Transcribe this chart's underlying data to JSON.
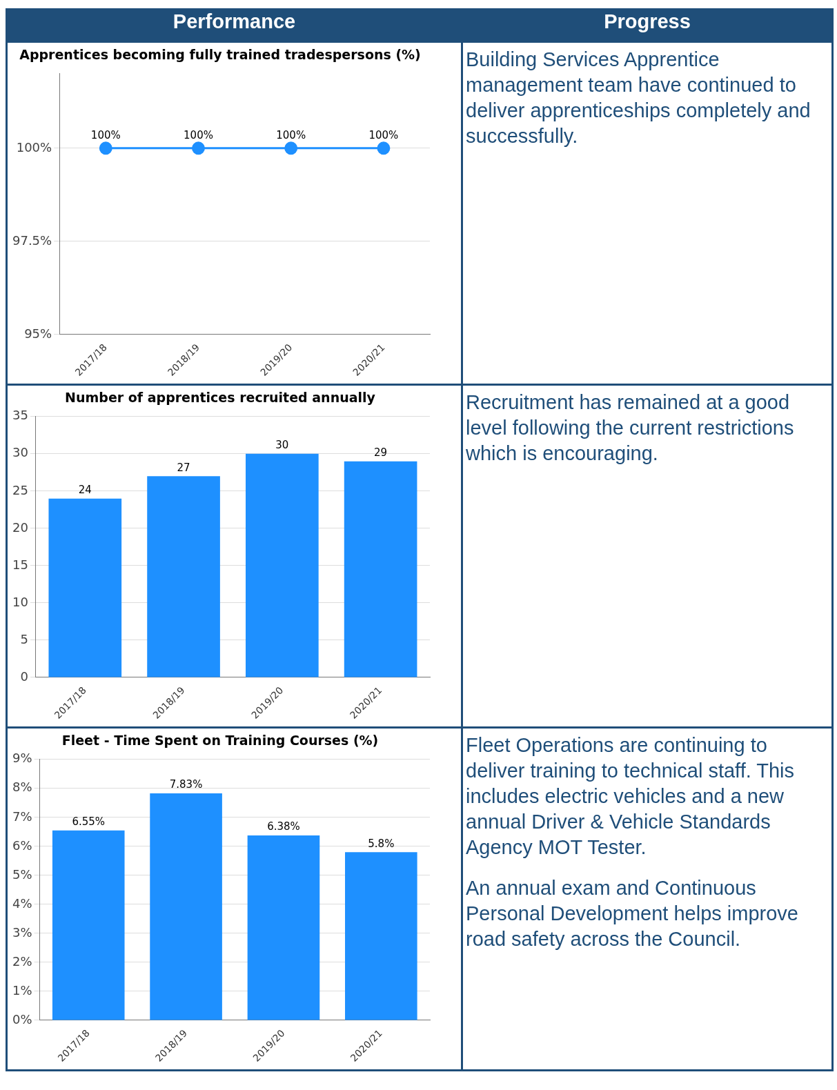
{
  "chart_data": [
    {
      "type": "other",
      "annotations": [
        "Performance",
        "Progress"
      ]
    },
    {
      "type": "line",
      "title": "Apprentices becoming fully trained tradespersons (%)",
      "categories": [
        "2017/18",
        "2018/19",
        "2019/20",
        "2020/21"
      ],
      "values": [
        100,
        100,
        100,
        100
      ],
      "value_labels": [
        "100%",
        "100%",
        "100%",
        "100%"
      ],
      "color": "#1e90ff",
      "marker": "circle",
      "ylim": [
        95,
        102
      ],
      "yticks": [
        {
          "value": 95,
          "label": "95%"
        },
        {
          "value": 97.5,
          "label": "97.5%"
        },
        {
          "value": 100,
          "label": "100%"
        }
      ],
      "grid": "y",
      "annotations": [
        "Building Services Apprentice management team have continued to deliver apprenticeships completely and successfully."
      ]
    },
    {
      "type": "bar",
      "title": "Number of apprentices recruited annually",
      "categories": [
        "2017/18",
        "2018/19",
        "2019/20",
        "2020/21"
      ],
      "values": [
        24,
        27,
        30,
        29
      ],
      "data_labels": true,
      "color": "#1e90ff",
      "ylim": [
        0,
        35
      ],
      "yticks": [
        0,
        5,
        10,
        15,
        20,
        25,
        30,
        35
      ],
      "grid": "y",
      "annotations": [
        "Recruitment has remained at a good level following the current restrictions which is encouraging."
      ]
    },
    {
      "type": "bar",
      "title": "Fleet - Time Spent on Training Courses (%)",
      "categories": [
        "2017/18",
        "2018/19",
        "2019/20",
        "2020/21"
      ],
      "values": [
        6.55,
        7.83,
        6.38,
        5.8
      ],
      "value_labels": [
        "6.55%",
        "7.83%",
        "6.38%",
        "5.8%"
      ],
      "color": "#1e90ff",
      "ylim": [
        0,
        9
      ],
      "yticks": [
        {
          "value": 0,
          "label": "0%"
        },
        {
          "value": 1,
          "label": "1%"
        },
        {
          "value": 2,
          "label": "2%"
        },
        {
          "value": 3,
          "label": "3%"
        },
        {
          "value": 4,
          "label": "4%"
        },
        {
          "value": 5,
          "label": "5%"
        },
        {
          "value": 6,
          "label": "6%"
        },
        {
          "value": 7,
          "label": "7%"
        },
        {
          "value": 8,
          "label": "8%"
        },
        {
          "value": 9,
          "label": "9%"
        }
      ],
      "grid": "y",
      "annotations": [
        "Fleet Operations are continuing to deliver training to technical staff. This includes electric vehicles and a new annual Driver & Vehicle Standards Agency MOT Tester.",
        "An annual exam and Continuous Personal Development helps improve road safety across the Council."
      ]
    }
  ]
}
